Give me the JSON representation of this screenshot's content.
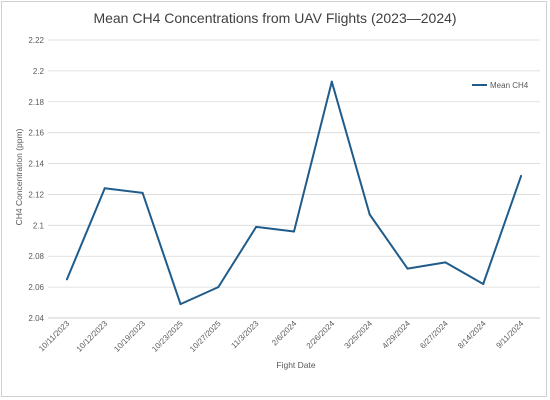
{
  "chart_data": {
    "type": "line",
    "title": "Mean CH4 Concentrations from UAV Flights (2023—2024)",
    "xlabel": "Fight Date",
    "ylabel": "CH4 Concentration (ppm)",
    "categories": [
      "10/11/2023",
      "10/12/2023",
      "10/19/2023",
      "10/23/2025",
      "10/27/2025",
      "11/3/2023",
      "2/6/2024",
      "2/26/2024",
      "3/25/2024",
      "4/29/2024",
      "6/27/2024",
      "8/14/2024",
      "9/11/2024"
    ],
    "series": [
      {
        "name": "Mean CH4",
        "color": "#1f5c8b",
        "values": [
          2.065,
          2.124,
          2.121,
          2.049,
          2.06,
          2.099,
          2.096,
          2.193,
          2.107,
          2.072,
          2.076,
          2.062,
          2.132
        ]
      }
    ],
    "ylim": [
      2.04,
      2.22
    ],
    "yticks": [
      "2.04",
      "2.06",
      "2.08",
      "2.1",
      "2.12",
      "2.14",
      "2.16",
      "2.18",
      "2.2",
      "2.22"
    ],
    "grid": true,
    "legend_position": "top-right"
  }
}
